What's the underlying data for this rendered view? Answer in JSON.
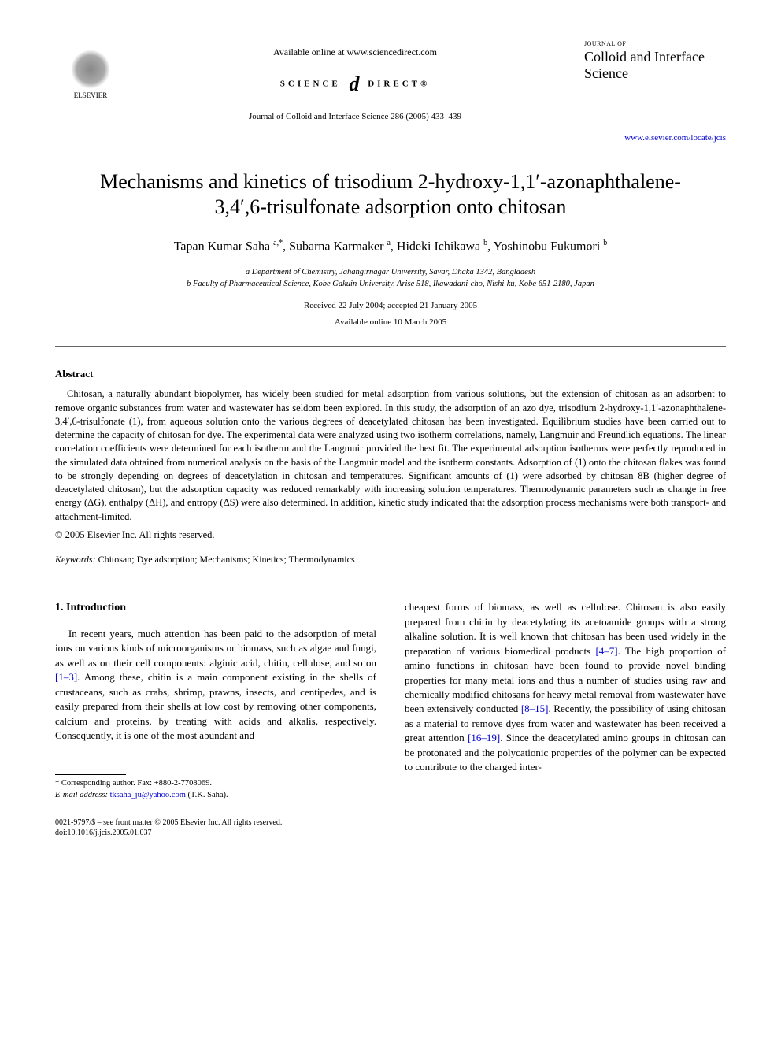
{
  "header": {
    "publisher": "ELSEVIER",
    "available": "Available online at www.sciencedirect.com",
    "sd_left": "SCIENCE",
    "sd_right": "DIRECT®",
    "citation": "Journal of Colloid and Interface Science 286 (2005) 433–439",
    "journal_small": "Journal of",
    "journal_big": "Colloid and Interface Science",
    "locate_url": "www.elsevier.com/locate/jcis"
  },
  "title": "Mechanisms and kinetics of trisodium 2-hydroxy-1,1′-azonaphthalene-3,4′,6-trisulfonate adsorption onto chitosan",
  "authors_html": "Tapan Kumar Saha <sup>a,*</sup>, Subarna Karmaker <sup>a</sup>, Hideki Ichikawa <sup>b</sup>, Yoshinobu Fukumori <sup>b</sup>",
  "affiliations": [
    "a Department of Chemistry, Jahangirnagar University, Savar, Dhaka 1342, Bangladesh",
    "b Faculty of Pharmaceutical Science, Kobe Gakuin University, Arise 518, Ikawadani-cho, Nishi-ku, Kobe 651-2180, Japan"
  ],
  "dates": {
    "received": "Received 22 July 2004; accepted 21 January 2005",
    "online": "Available online 10 March 2005"
  },
  "abstract": {
    "heading": "Abstract",
    "text": "Chitosan, a naturally abundant biopolymer, has widely been studied for metal adsorption from various solutions, but the extension of chitosan as an adsorbent to remove organic substances from water and wastewater has seldom been explored. In this study, the adsorption of an azo dye, trisodium 2-hydroxy-1,1′-azonaphthalene-3,4′,6-trisulfonate (1), from aqueous solution onto the various degrees of deacetylated chitosan has been investigated. Equilibrium studies have been carried out to determine the capacity of chitosan for dye. The experimental data were analyzed using two isotherm correlations, namely, Langmuir and Freundlich equations. The linear correlation coefficients were determined for each isotherm and the Langmuir provided the best fit. The experimental adsorption isotherms were perfectly reproduced in the simulated data obtained from numerical analysis on the basis of the Langmuir model and the isotherm constants. Adsorption of (1) onto the chitosan flakes was found to be strongly depending on degrees of deacetylation in chitosan and temperatures. Significant amounts of (1) were adsorbed by chitosan 8B (higher degree of deacetylated chitosan), but the adsorption capacity was reduced remarkably with increasing solution temperatures. Thermodynamic parameters such as change in free energy (ΔG), enthalpy (ΔH), and entropy (ΔS) were also determined. In addition, kinetic study indicated that the adsorption process mechanisms were both transport- and attachment-limited.",
    "copyright": "© 2005 Elsevier Inc. All rights reserved."
  },
  "keywords": {
    "label": "Keywords:",
    "text": "Chitosan; Dye adsorption; Mechanisms; Kinetics; Thermodynamics"
  },
  "section1": {
    "heading": "1. Introduction",
    "col1": "In recent years, much attention has been paid to the adsorption of metal ions on various kinds of microorganisms or biomass, such as algae and fungi, as well as on their cell components: alginic acid, chitin, cellulose, and so on [1–3]. Among these, chitin is a main component existing in the shells of crustaceans, such as crabs, shrimp, prawns, insects, and centipedes, and is easily prepared from their shells at low cost by removing other components, calcium and proteins, by treating with acids and alkalis, respectively. Consequently, it is one of the most abundant and",
    "col2": "cheapest forms of biomass, as well as cellulose. Chitosan is also easily prepared from chitin by deacetylating its acetoamide groups with a strong alkaline solution. It is well known that chitosan has been used widely in the preparation of various biomedical products [4–7]. The high proportion of amino functions in chitosan have been found to provide novel binding properties for many metal ions and thus a number of studies using raw and chemically modified chitosans for heavy metal removal from wastewater have been extensively conducted [8–15]. Recently, the possibility of using chitosan as a material to remove dyes from water and wastewater has been received a great attention [16–19]. Since the deacetylated amino groups in chitosan can be protonated and the polycationic properties of the polymer can be expected to contribute to the charged inter-"
  },
  "cites": {
    "c1": "[1–3]",
    "c2": "[4–7]",
    "c3": "[8–15]",
    "c4": "[16–19]"
  },
  "footnotes": {
    "corr": "* Corresponding author. Fax: +880-2-7708069.",
    "email_label": "E-mail address:",
    "email": "tksaha_ju@yahoo.com",
    "email_paren": "(T.K. Saha)."
  },
  "bottom": {
    "line1": "0021-9797/$ – see front matter © 2005 Elsevier Inc. All rights reserved.",
    "line2": "doi:10.1016/j.jcis.2005.01.037"
  },
  "colors": {
    "link": "#0000cc",
    "text": "#000000",
    "bg": "#ffffff"
  }
}
